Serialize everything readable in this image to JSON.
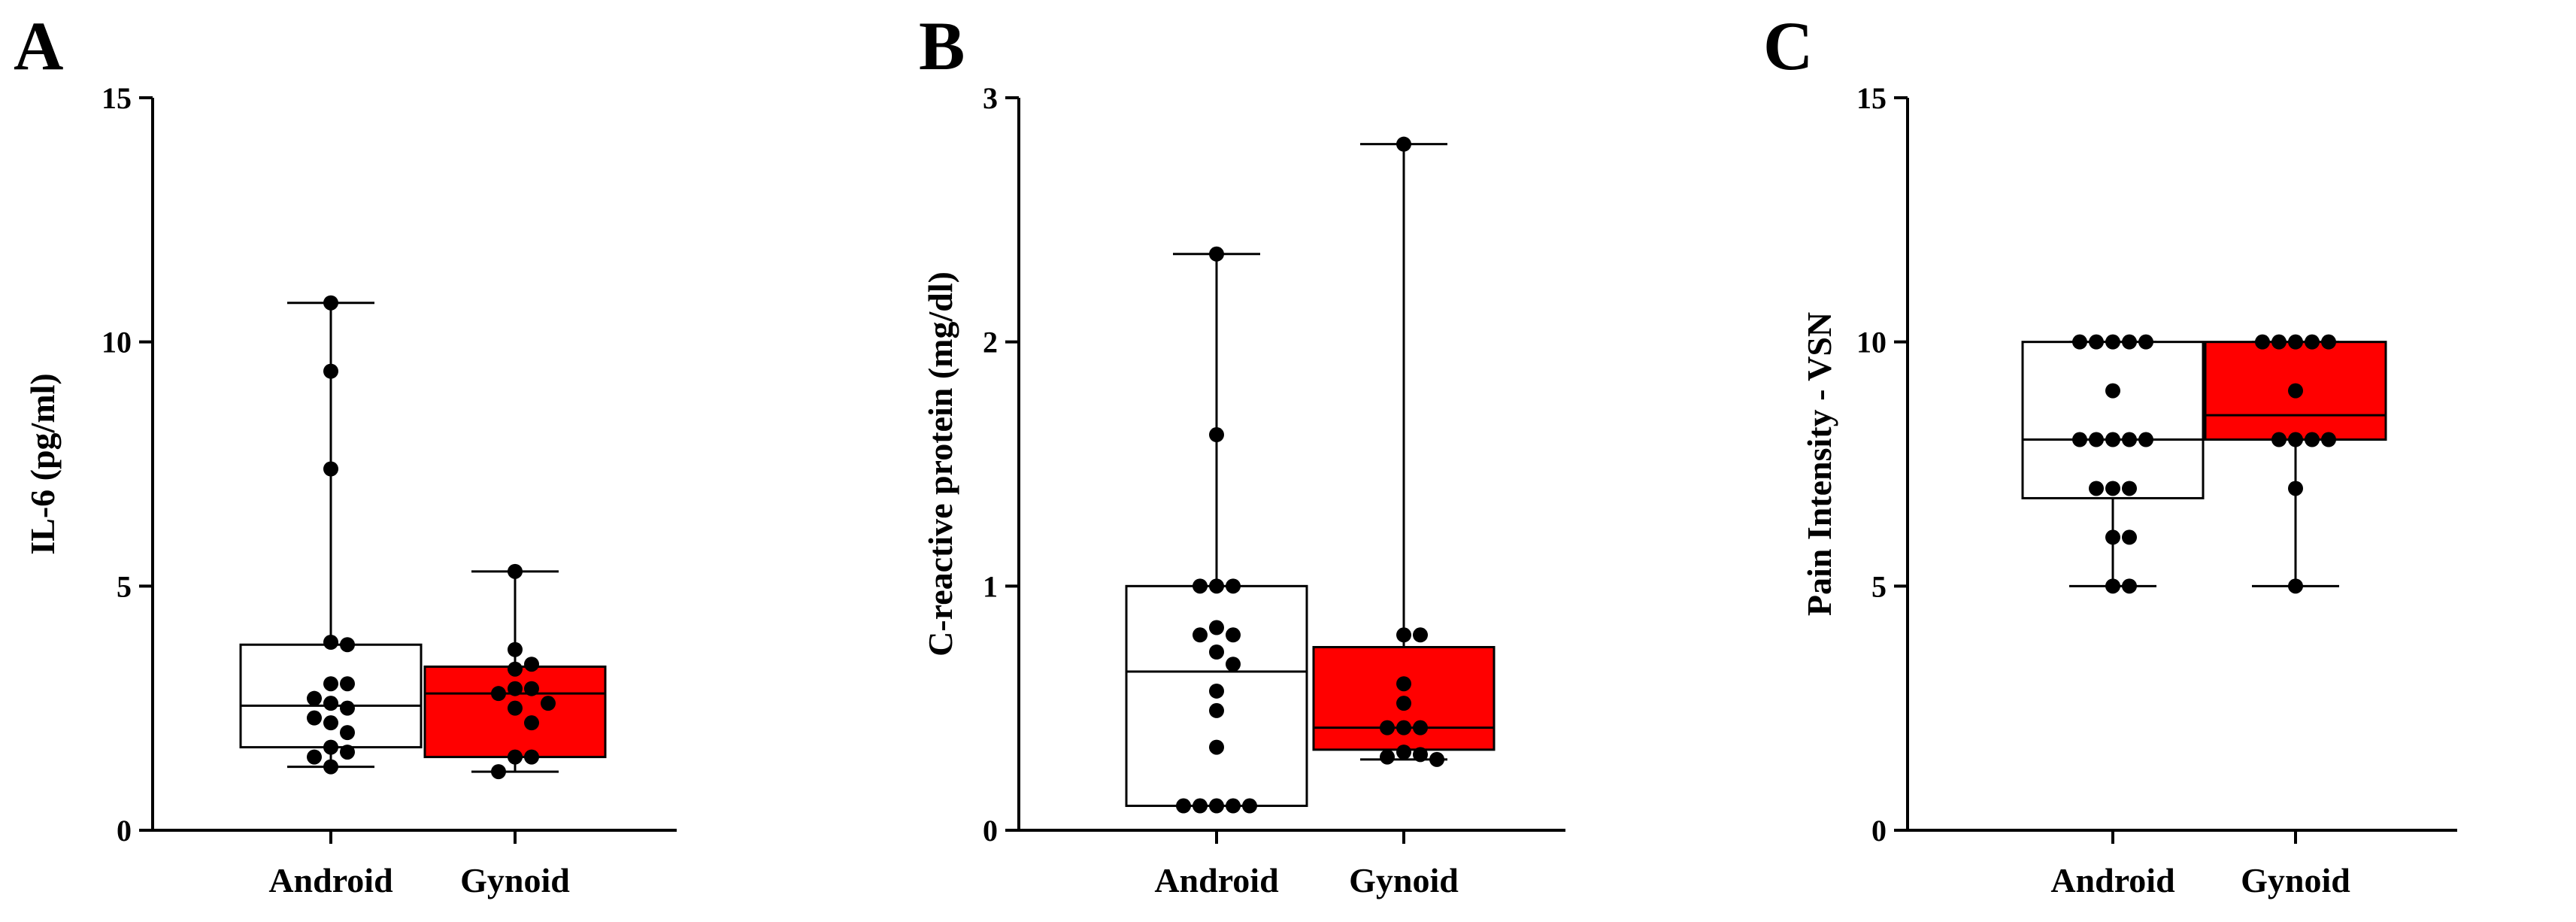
{
  "chart_data": [
    {
      "type": "box",
      "panel_label": "A",
      "ylabel": "IL-6 (pg/ml)",
      "ylim": [
        0,
        15
      ],
      "yticks": [
        0,
        5,
        10,
        15
      ],
      "categories": [
        "Android",
        "Gynoid"
      ],
      "groups": [
        {
          "name": "Android",
          "fill": "#ffffff",
          "min": 1.3,
          "q1": 1.7,
          "median": 2.55,
          "q3": 3.8,
          "max": 10.8,
          "points": [
            10.8,
            9.4,
            7.4,
            3.85,
            3.8,
            3.0,
            3.0,
            2.7,
            2.6,
            2.5,
            2.3,
            2.2,
            2.0,
            1.7,
            1.6,
            1.5,
            1.3
          ]
        },
        {
          "name": "Gynoid",
          "fill": "#ff0000",
          "min": 1.2,
          "q1": 1.5,
          "median": 2.8,
          "q3": 3.35,
          "max": 5.3,
          "points": [
            5.3,
            3.7,
            3.4,
            3.3,
            2.9,
            2.9,
            2.8,
            2.6,
            2.5,
            2.2,
            1.5,
            1.5,
            1.2
          ]
        }
      ]
    },
    {
      "type": "box",
      "panel_label": "B",
      "ylabel": "C-reactive protein (mg/dl)",
      "ylim": [
        0,
        3
      ],
      "yticks": [
        0,
        1,
        2,
        3
      ],
      "categories": [
        "Android",
        "Gynoid"
      ],
      "groups": [
        {
          "name": "Android",
          "fill": "#ffffff",
          "min": 0.1,
          "q1": 0.1,
          "median": 0.65,
          "q3": 1.0,
          "max": 2.36,
          "points": [
            2.36,
            1.62,
            1.0,
            1.0,
            1.0,
            0.83,
            0.8,
            0.8,
            0.73,
            0.68,
            0.57,
            0.49,
            0.34,
            0.1,
            0.1,
            0.1,
            0.1,
            0.1
          ]
        },
        {
          "name": "Gynoid",
          "fill": "#ff0000",
          "min": 0.29,
          "q1": 0.33,
          "median": 0.42,
          "q3": 0.75,
          "max": 2.81,
          "points": [
            2.81,
            0.8,
            0.8,
            0.6,
            0.52,
            0.42,
            0.42,
            0.42,
            0.32,
            0.31,
            0.3,
            0.29
          ]
        }
      ]
    },
    {
      "type": "box",
      "panel_label": "C",
      "ylabel": "Pain Intensity - VSN",
      "ylim": [
        0,
        15
      ],
      "yticks": [
        0,
        5,
        10,
        15
      ],
      "categories": [
        "Android",
        "Gynoid"
      ],
      "groups": [
        {
          "name": "Android",
          "fill": "#ffffff",
          "min": 5,
          "q1": 6.8,
          "median": 8,
          "q3": 10,
          "max": 10,
          "points": [
            10,
            10,
            10,
            10,
            10,
            9,
            8,
            8,
            8,
            8,
            8,
            7,
            7,
            7,
            6,
            6,
            5,
            5
          ]
        },
        {
          "name": "Gynoid",
          "fill": "#ff0000",
          "min": 5,
          "q1": 8,
          "median": 8.5,
          "q3": 10,
          "max": 10,
          "points": [
            10,
            10,
            10,
            10,
            10,
            9,
            8,
            8,
            8,
            8,
            7,
            5
          ]
        }
      ]
    }
  ]
}
